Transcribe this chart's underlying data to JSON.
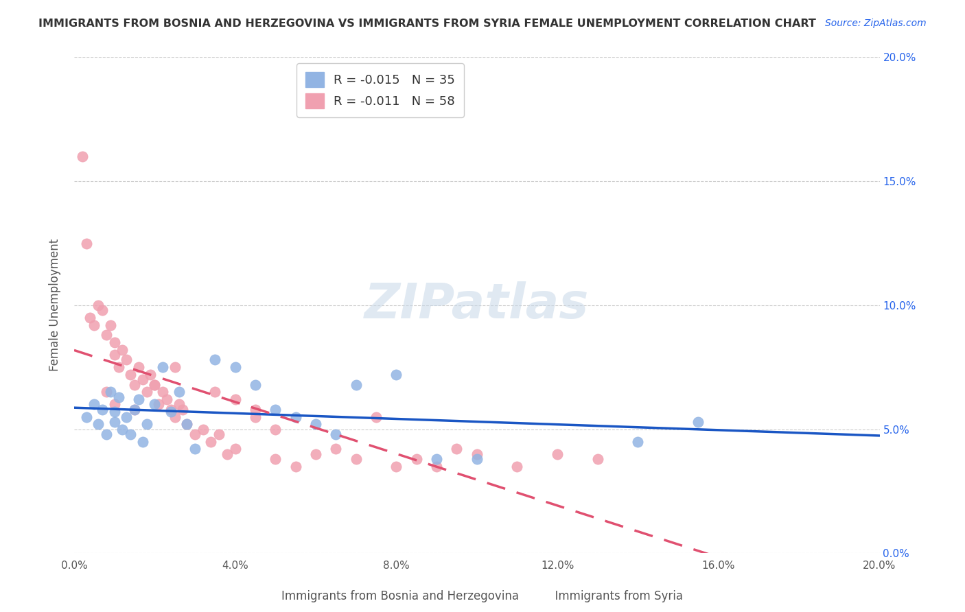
{
  "title": "IMMIGRANTS FROM BOSNIA AND HERZEGOVINA VS IMMIGRANTS FROM SYRIA FEMALE UNEMPLOYMENT CORRELATION CHART",
  "source": "Source: ZipAtlas.com",
  "xlabel_bosnia": "Immigrants from Bosnia and Herzegovina",
  "xlabel_syria": "Immigrants from Syria",
  "ylabel": "Female Unemployment",
  "xlim": [
    0.0,
    0.2
  ],
  "ylim": [
    0.0,
    0.2
  ],
  "xticks": [
    0.0,
    0.04,
    0.08,
    0.12,
    0.16,
    0.2
  ],
  "yticks": [
    0.0,
    0.05,
    0.1,
    0.15,
    0.2
  ],
  "ytick_labels_right": [
    "0.0%",
    "5.0%",
    "10.0%",
    "15.0%",
    "20.0%"
  ],
  "xtick_labels": [
    "0.0%",
    "4.0%",
    "8.0%",
    "12.0%",
    "16.0%",
    "20.0%"
  ],
  "bosnia_color": "#92b4e3",
  "syria_color": "#f0a0b0",
  "bosnia_line_color": "#1a56c4",
  "syria_line_color": "#e05070",
  "legend_R_bosnia": "-0.015",
  "legend_N_bosnia": "35",
  "legend_R_syria": "-0.011",
  "legend_N_syria": "58",
  "watermark": "ZIPatlas",
  "bosnia_x": [
    0.003,
    0.005,
    0.006,
    0.007,
    0.008,
    0.009,
    0.01,
    0.01,
    0.011,
    0.012,
    0.013,
    0.014,
    0.015,
    0.016,
    0.017,
    0.018,
    0.02,
    0.022,
    0.024,
    0.026,
    0.028,
    0.03,
    0.035,
    0.04,
    0.045,
    0.05,
    0.055,
    0.06,
    0.065,
    0.07,
    0.08,
    0.09,
    0.1,
    0.14,
    0.155
  ],
  "bosnia_y": [
    0.055,
    0.06,
    0.052,
    0.058,
    0.048,
    0.065,
    0.053,
    0.057,
    0.063,
    0.05,
    0.055,
    0.048,
    0.058,
    0.062,
    0.045,
    0.052,
    0.06,
    0.075,
    0.057,
    0.065,
    0.052,
    0.042,
    0.078,
    0.075,
    0.068,
    0.058,
    0.055,
    0.052,
    0.048,
    0.068,
    0.072,
    0.038,
    0.038,
    0.045,
    0.053
  ],
  "syria_x": [
    0.002,
    0.003,
    0.004,
    0.005,
    0.006,
    0.007,
    0.008,
    0.009,
    0.01,
    0.01,
    0.011,
    0.012,
    0.013,
    0.014,
    0.015,
    0.016,
    0.017,
    0.018,
    0.019,
    0.02,
    0.021,
    0.022,
    0.023,
    0.024,
    0.025,
    0.026,
    0.027,
    0.028,
    0.03,
    0.032,
    0.034,
    0.036,
    0.038,
    0.04,
    0.045,
    0.05,
    0.055,
    0.06,
    0.065,
    0.07,
    0.075,
    0.08,
    0.085,
    0.09,
    0.095,
    0.1,
    0.11,
    0.12,
    0.13,
    0.025,
    0.035,
    0.04,
    0.045,
    0.05,
    0.015,
    0.02,
    0.008,
    0.01
  ],
  "syria_y": [
    0.16,
    0.125,
    0.095,
    0.092,
    0.1,
    0.098,
    0.088,
    0.092,
    0.08,
    0.085,
    0.075,
    0.082,
    0.078,
    0.072,
    0.068,
    0.075,
    0.07,
    0.065,
    0.072,
    0.068,
    0.06,
    0.065,
    0.062,
    0.058,
    0.055,
    0.06,
    0.058,
    0.052,
    0.048,
    0.05,
    0.045,
    0.048,
    0.04,
    0.042,
    0.055,
    0.038,
    0.035,
    0.04,
    0.042,
    0.038,
    0.055,
    0.035,
    0.038,
    0.035,
    0.042,
    0.04,
    0.035,
    0.04,
    0.038,
    0.075,
    0.065,
    0.062,
    0.058,
    0.05,
    0.058,
    0.068,
    0.065,
    0.06
  ]
}
